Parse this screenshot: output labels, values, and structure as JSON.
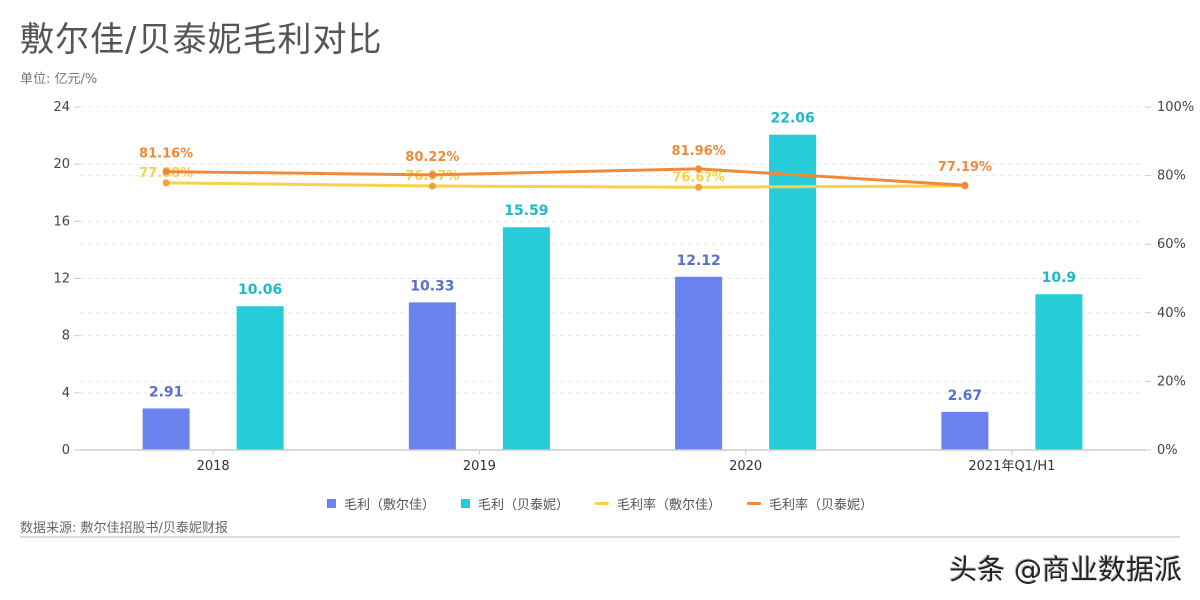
{
  "header": {
    "title": "敷尔佳/贝泰妮毛利对比",
    "unit": "单位: 亿元/%"
  },
  "footer": {
    "source": "数据来源: 敷尔佳招股书/贝泰妮财报",
    "watermark": "头条 @商业数据派"
  },
  "legend": {
    "items": [
      {
        "label": "毛利（敷尔佳）",
        "type": "box",
        "color": "#6B83EE"
      },
      {
        "label": "毛利（贝泰妮）",
        "type": "box",
        "color": "#26CCD8"
      },
      {
        "label": "毛利率（敷尔佳）",
        "type": "line",
        "color": "#F9D14B"
      },
      {
        "label": "毛利率（贝泰妮）",
        "type": "line",
        "color": "#EE8A3C"
      }
    ]
  },
  "axes": {
    "left_ticks": [
      "0",
      "4",
      "8",
      "12",
      "16",
      "20",
      "24"
    ],
    "right_ticks": [
      "0%",
      "20%",
      "40%",
      "60%",
      "80%",
      "100%"
    ]
  },
  "chart_data": {
    "type": "bar",
    "title": "敷尔佳/贝泰妮毛利对比",
    "subtitle": "单位: 亿元/%",
    "categories": [
      "2018",
      "2019",
      "2020",
      "2021年Q1/H1"
    ],
    "series": [
      {
        "name": "毛利（敷尔佳）",
        "type": "bar",
        "axis": "left",
        "color": "#6B83EE",
        "values": [
          2.91,
          10.33,
          12.12,
          2.67
        ],
        "labels": [
          "2.91",
          "10.33",
          "12.12",
          "2.67"
        ]
      },
      {
        "name": "毛利（贝泰妮）",
        "type": "bar",
        "axis": "left",
        "color": "#26CCD8",
        "values": [
          10.06,
          15.59,
          22.06,
          10.9
        ],
        "labels": [
          "10.06",
          "15.59",
          "22.06",
          "10.9"
        ]
      },
      {
        "name": "毛利率（敷尔佳）",
        "type": "line",
        "axis": "right",
        "color": "#F9D14B",
        "values": [
          77.88,
          76.97,
          76.6,
          77.0
        ],
        "labels": [
          "77.88%",
          "76.97%",
          "76.6?%",
          ""
        ]
      },
      {
        "name": "毛利率（贝泰妮）",
        "type": "line",
        "axis": "right",
        "color": "#EE8A3C",
        "values": [
          81.16,
          80.22,
          81.96,
          77.19
        ],
        "labels": [
          "81.16%",
          "80.22%",
          "81.96%",
          "77.19%"
        ]
      }
    ],
    "xlabel": "",
    "ylabel": "亿元",
    "ylabel_right": "%",
    "ylim": [
      0,
      24
    ],
    "ylim_right": [
      0,
      100
    ],
    "grid": true,
    "legend_position": "bottom"
  }
}
